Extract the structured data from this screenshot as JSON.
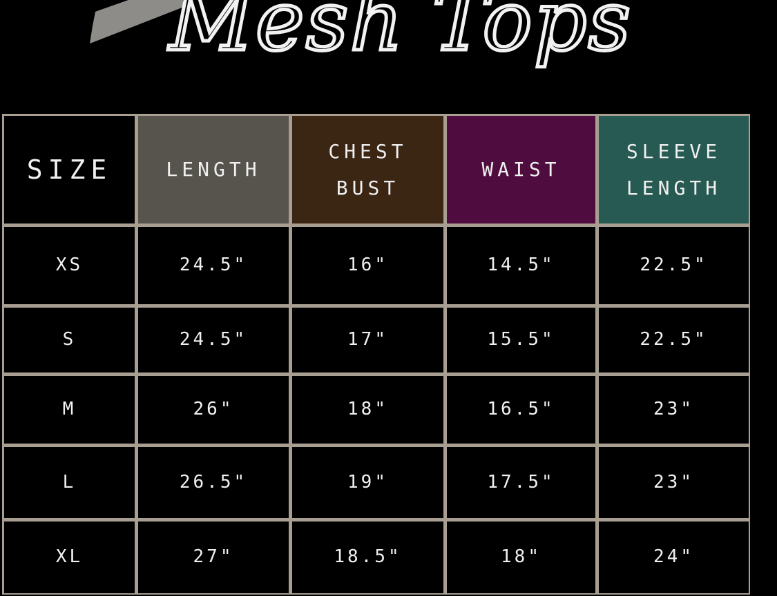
{
  "title": "Mesh Tops",
  "colors": {
    "border": "#a89f92",
    "length": "#57534d",
    "chest": "#3b2513",
    "waist": "#4e0d3e",
    "sleeve": "#275a52"
  },
  "headers": [
    "SIZE",
    "LENGTH",
    "CHEST\nBUST",
    "WAIST",
    "SLEEVE\nLENGTH"
  ],
  "rows": [
    [
      "XS",
      "24.5\"",
      "16\"",
      "14.5\"",
      "22.5\""
    ],
    [
      "S",
      "24.5\"",
      "17\"",
      "15.5\"",
      "22.5\""
    ],
    [
      "M",
      "26\"",
      "18\"",
      "16.5\"",
      "23\""
    ],
    [
      "L",
      "26.5\"",
      "19\"",
      "17.5\"",
      "23\""
    ],
    [
      "XL",
      "27\"",
      "18.5\"",
      "18\"",
      "24\""
    ]
  ]
}
